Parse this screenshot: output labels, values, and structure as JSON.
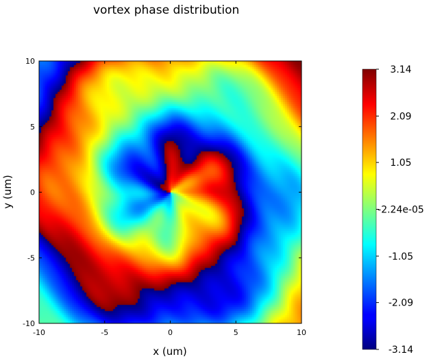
{
  "chart_data": {
    "type": "heatmap",
    "title": "vortex phase distribution",
    "xlabel": "x (um)",
    "ylabel": "y (um)",
    "xlim": [
      -10,
      10
    ],
    "ylim": [
      -10,
      10
    ],
    "x_ticks": [
      -10,
      -5,
      0,
      5,
      10
    ],
    "y_ticks": [
      -10,
      -5,
      0,
      5,
      10
    ],
    "colormap": "jet",
    "colorbar": {
      "min": -3.14,
      "max": 3.14,
      "tick_values": [
        3.14,
        2.09,
        1.05,
        -2.24e-05,
        -1.05,
        -2.09,
        -3.14
      ],
      "tick_labels": [
        "3.14",
        "2.09",
        "1.05",
        "-2.24e-05",
        "-1.05",
        "-2.09",
        "-3.14"
      ]
    },
    "grid": false,
    "legend": "none"
  }
}
